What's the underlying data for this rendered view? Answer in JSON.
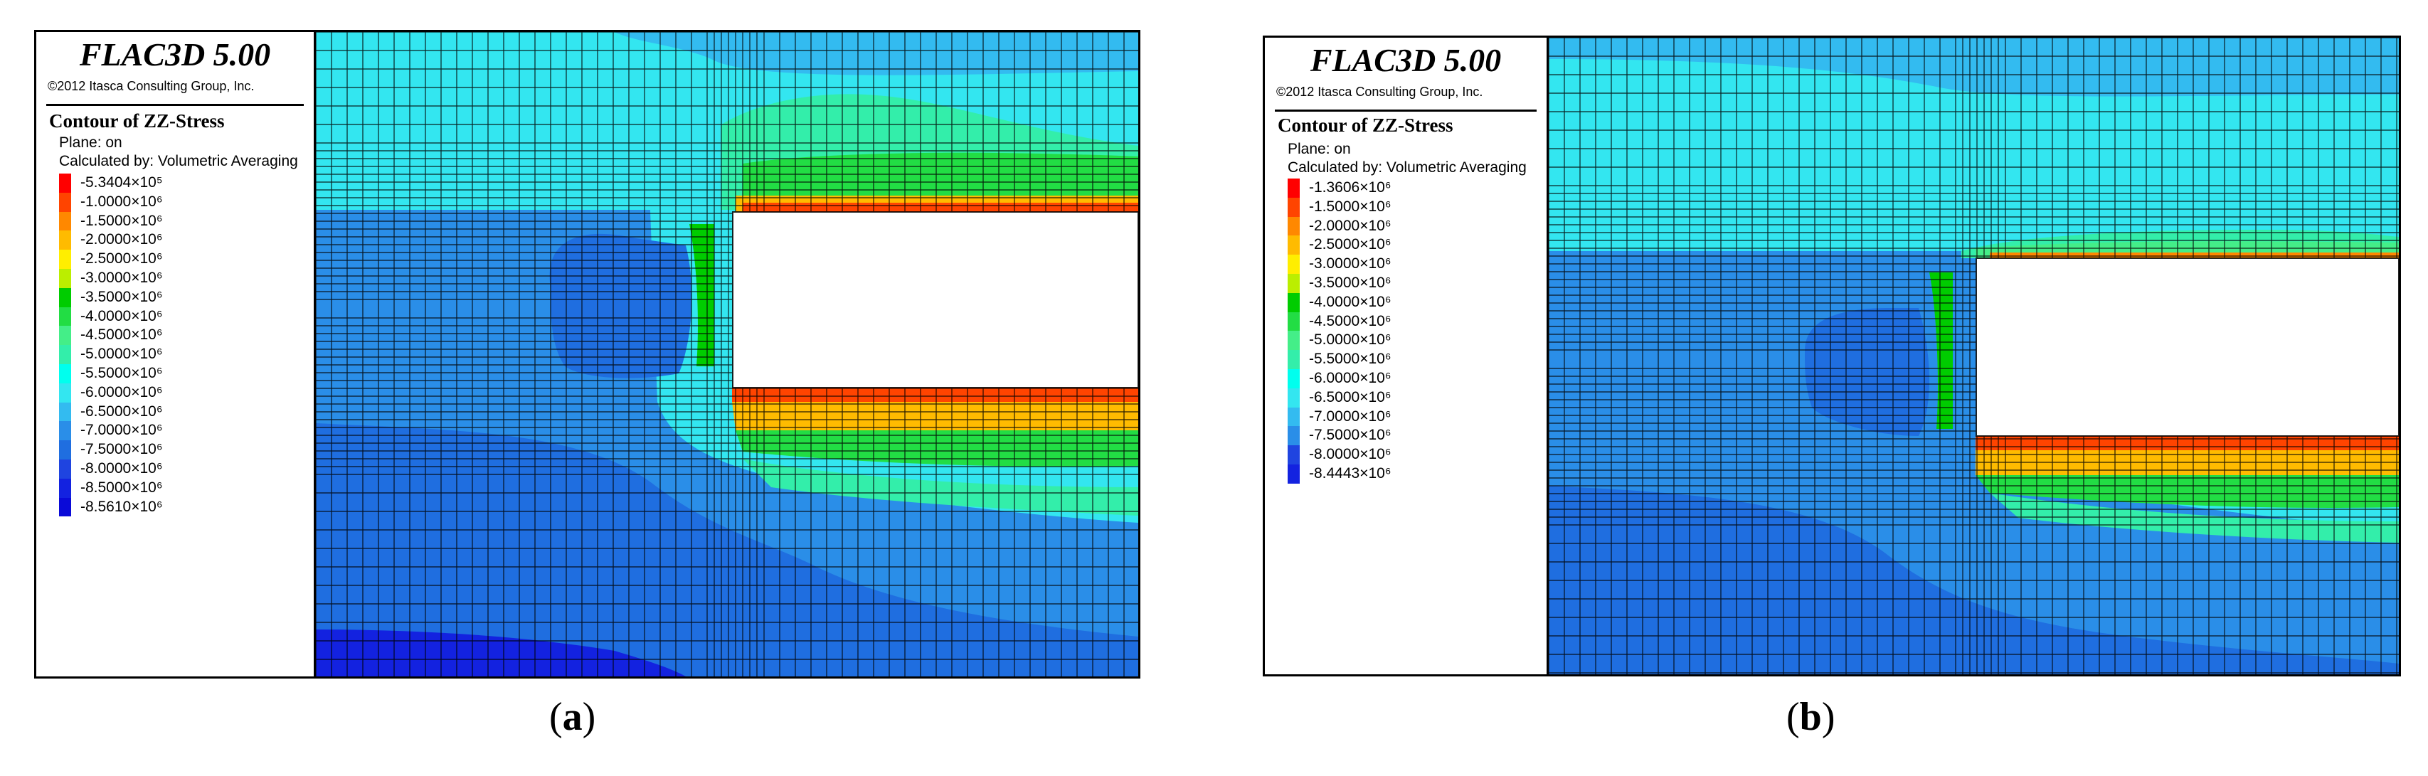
{
  "colors": {
    "red": "#ff0000",
    "orange_red": "#ff4400",
    "orange": "#ff8800",
    "amber": "#ffbb00",
    "yellow": "#ffee00",
    "yellow_green": "#bbee00",
    "green": "#00cc00",
    "mid_green": "#22dd44",
    "spring_green": "#44ee88",
    "aqua_green": "#33eeaa",
    "cyan": "#00ffee",
    "light_cyan": "#33e6f0",
    "sky_blue": "#33bbf0",
    "blue": "#2a8ee8",
    "deep_blue": "#1f6ee0",
    "navy_blue": "#1f44e0",
    "darkest_blue": "#1322e0",
    "border": "#000000",
    "mesh_line": "#000000"
  },
  "panel_a": {
    "title": "FLAC3D 5.00",
    "copyright": "©2012 Itasca Consulting Group, Inc.",
    "heading": "Contour of ZZ-Stress",
    "plane": "Plane: on",
    "calc": "Calculated by: Volumetric Averaging",
    "caption": "a",
    "legend": [
      {
        "label": "-5.3404×10⁵",
        "color": "#ff0000"
      },
      {
        "label": "-1.0000×10⁶",
        "color": "#ff4400"
      },
      {
        "label": "-1.5000×10⁶",
        "color": "#ff8800"
      },
      {
        "label": "-2.0000×10⁶",
        "color": "#ffbb00"
      },
      {
        "label": "-2.5000×10⁶",
        "color": "#ffee00"
      },
      {
        "label": "-3.0000×10⁶",
        "color": "#bbee00"
      },
      {
        "label": "-3.5000×10⁶",
        "color": "#00cc00"
      },
      {
        "label": "-4.0000×10⁶",
        "color": "#22dd44"
      },
      {
        "label": "-4.5000×10⁶",
        "color": "#44ee88"
      },
      {
        "label": "-5.0000×10⁶",
        "color": "#33eeaa"
      },
      {
        "label": "-5.5000×10⁶",
        "color": "#00ffee"
      },
      {
        "label": "-6.0000×10⁶",
        "color": "#33e6f0"
      },
      {
        "label": "-6.5000×10⁶",
        "color": "#33bbf0"
      },
      {
        "label": "-7.0000×10⁶",
        "color": "#2a8ee8"
      },
      {
        "label": "-7.5000×10⁶",
        "color": "#1f6ee0"
      },
      {
        "label": "-8.0000×10⁶",
        "color": "#1f44e0"
      },
      {
        "label": "-8.5000×10⁶",
        "color": "#1322e0"
      },
      {
        "label": "-8.5610×10⁶",
        "color": "#0a0ad8"
      }
    ]
  },
  "panel_b": {
    "title": "FLAC3D 5.00",
    "copyright": "©2012 Itasca Consulting Group, Inc.",
    "heading": "Contour of ZZ-Stress",
    "plane": "Plane: on",
    "calc": "Calculated by: Volumetric Averaging",
    "caption": "b",
    "legend": [
      {
        "label": "-1.3606×10⁶",
        "color": "#ff0000"
      },
      {
        "label": "-1.5000×10⁶",
        "color": "#ff4400"
      },
      {
        "label": "-2.0000×10⁶",
        "color": "#ff8800"
      },
      {
        "label": "-2.5000×10⁶",
        "color": "#ffbb00"
      },
      {
        "label": "-3.0000×10⁶",
        "color": "#ffee00"
      },
      {
        "label": "-3.5000×10⁶",
        "color": "#bbee00"
      },
      {
        "label": "-4.0000×10⁶",
        "color": "#00cc00"
      },
      {
        "label": "-4.5000×10⁶",
        "color": "#22dd44"
      },
      {
        "label": "-5.0000×10⁶",
        "color": "#44ee88"
      },
      {
        "label": "-5.5000×10⁶",
        "color": "#33eeaa"
      },
      {
        "label": "-6.0000×10⁶",
        "color": "#00ffee"
      },
      {
        "label": "-6.5000×10⁶",
        "color": "#33e6f0"
      },
      {
        "label": "-7.0000×10⁶",
        "color": "#33bbf0"
      },
      {
        "label": "-7.5000×10⁶",
        "color": "#2a8ee8"
      },
      {
        "label": "-8.0000×10⁶",
        "color": "#1f44e0"
      },
      {
        "label": "-8.4443×10⁶",
        "color": "#1322e0"
      }
    ]
  }
}
